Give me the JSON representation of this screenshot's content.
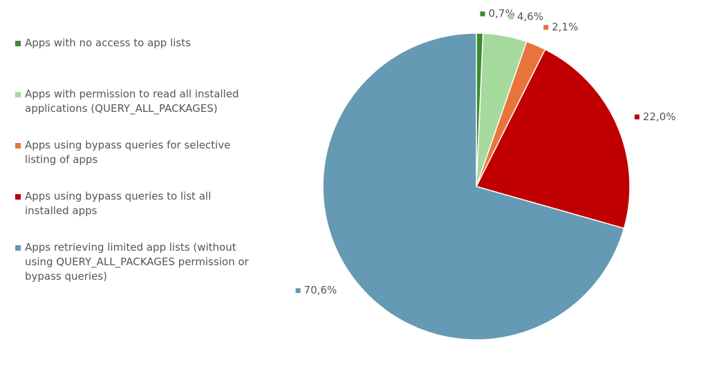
{
  "chart_data": {
    "type": "pie",
    "categories": [
      "Apps with no access to app lists",
      "Apps with permission to read all installed applications (QUERY_ALL_PACKAGES)",
      "Apps using bypass queries for selective listing of apps",
      "Apps using bypass queries to list all installed apps",
      "Apps retrieving limited app lists (without using QUERY_ALL_PACKAGES permission or bypass queries)"
    ],
    "values": [
      0.7,
      4.6,
      2.1,
      22.0,
      70.6
    ],
    "value_labels": [
      "0,7%",
      "4,6%",
      "2,1%",
      "22,0%",
      "70,6%"
    ],
    "colors": [
      "#3b8a2f",
      "#a4da9c",
      "#e8743b",
      "#c00000",
      "#6699b4"
    ],
    "legend": "left"
  }
}
